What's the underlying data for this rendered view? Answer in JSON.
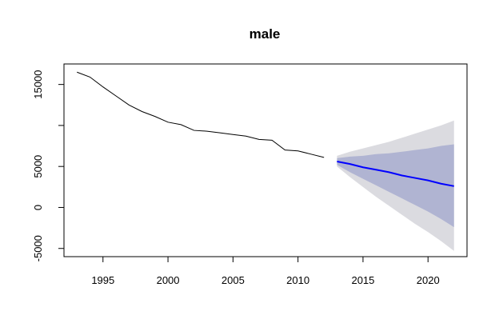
{
  "chart_data": {
    "type": "line",
    "title": "male",
    "xlabel": "",
    "ylabel": "",
    "xlim": [
      1992,
      2023
    ],
    "ylim": [
      -6000,
      17500
    ],
    "x_ticks": [
      1995,
      2000,
      2005,
      2010,
      2015,
      2020
    ],
    "y_ticks": [
      -5000,
      0,
      5000,
      10000,
      15000
    ],
    "y_tick_labels": [
      "-5000",
      "0",
      "5000",
      "",
      "15000"
    ],
    "grid": false,
    "legend": "none",
    "colors": {
      "history": "#000000",
      "forecast": "#0000ff",
      "band_outer": "#dbdbe0",
      "band_inner": "#b0b4d2"
    },
    "series": [
      {
        "x": [
          1993,
          1994,
          1995,
          1996,
          1997,
          1998,
          1999,
          2000,
          2001,
          2002,
          2003,
          2004,
          2005,
          2006,
          2007,
          2008,
          2009,
          2010,
          2011,
          2012
        ],
        "values": [
          16500,
          15900,
          14700,
          13600,
          12500,
          11700,
          11100,
          10400,
          10100,
          9400,
          9300,
          9100,
          8900,
          8700,
          8300,
          8200,
          7000,
          6900,
          6500,
          6100
        ]
      },
      {
        "x": [
          2013,
          2014,
          2015,
          2016,
          2017,
          2018,
          2019,
          2020,
          2021,
          2022
        ],
        "values": [
          5600,
          5300,
          4900,
          4600,
          4300,
          3900,
          3600,
          3300,
          2900,
          2600
        ],
        "bands": [
          {
            "level": "inner",
            "lower": [
              5200,
              4300,
              3500,
              2700,
              1900,
              1100,
              300,
              -500,
              -1400,
              -2400
            ],
            "upper": [
              6000,
              6200,
              6300,
              6500,
              6600,
              6800,
              7000,
              7200,
              7500,
              7700
            ]
          },
          {
            "level": "outer",
            "lower": [
              5000,
              3700,
              2500,
              1300,
              200,
              -900,
              -2000,
              -3000,
              -4100,
              -5300
            ],
            "upper": [
              6300,
              6800,
              7200,
              7600,
              8000,
              8500,
              9000,
              9500,
              10000,
              10600
            ]
          }
        ]
      }
    ]
  }
}
